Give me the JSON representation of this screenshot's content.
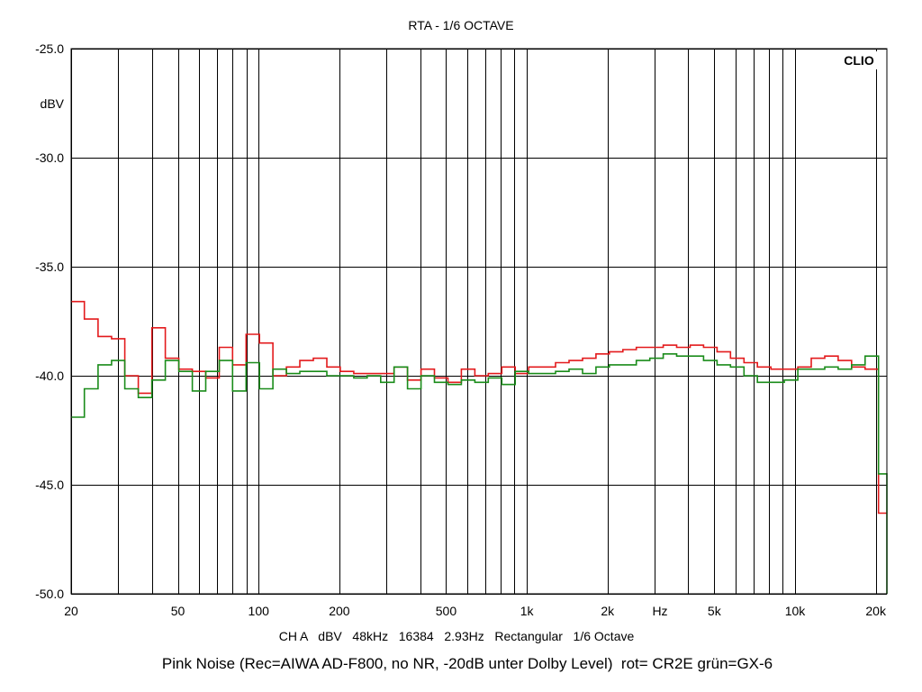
{
  "title": "RTA - 1/6 OCTAVE",
  "brand": "CLIO",
  "ylabel": "dBV",
  "xunit_label": "Hz",
  "settings_line": "CH A   dBV   48kHz   16384   2.93Hz   Rectangular   1/6 Octave",
  "caption": "Pink Noise (Rec=AIWA AD-F800, no NR, -20dB unter Dolby Level)  rot= CR2E grün=GX-6",
  "chart_data": {
    "type": "line",
    "step": true,
    "xscale": "log",
    "xlim": [
      20,
      22000
    ],
    "ylim": [
      -50,
      -25
    ],
    "grid": true,
    "y_ticks": [
      -25,
      -30,
      -35,
      -40,
      -45,
      -50
    ],
    "y_tick_labels": [
      "-25.0",
      "-30.0",
      "-35.0",
      "-40.0",
      "-45.0",
      "-50.0"
    ],
    "x_ticks": [
      20,
      50,
      100,
      200,
      500,
      1000,
      2000,
      5000,
      10000,
      20000
    ],
    "x_tick_labels": [
      "20",
      "50",
      "100",
      "200",
      "500",
      "1k",
      "2k",
      "5k",
      "10k",
      "20k"
    ],
    "x_grid": [
      20,
      30,
      40,
      50,
      60,
      70,
      80,
      90,
      100,
      200,
      300,
      400,
      500,
      600,
      700,
      800,
      900,
      1000,
      2000,
      3000,
      4000,
      5000,
      6000,
      7000,
      8000,
      9000,
      10000,
      20000
    ],
    "series": [
      {
        "color": "#e31a1c",
        "x": [
          20,
          22.4,
          25.2,
          28.3,
          31.7,
          35.6,
          40,
          44.9,
          50.4,
          56.6,
          63.5,
          71.3,
          80,
          89.8,
          100.8,
          113.1,
          127,
          142.5,
          160,
          179.6,
          201.6,
          226.3,
          254,
          285.1,
          320,
          359.2,
          403.2,
          452.5,
          508,
          570.2,
          640,
          718.4,
          806.3,
          905.1,
          1016,
          1140,
          1280,
          1437,
          1613,
          1810,
          2032,
          2281,
          2560,
          2874,
          3225,
          3620,
          4064,
          4561,
          5120,
          5747,
          6451,
          7241,
          8127,
          9123,
          10240,
          11494,
          12902,
          14482,
          16255,
          18246,
          20480,
          22000
        ],
        "y": [
          -36.6,
          -37.4,
          -38.2,
          -38.3,
          -40.0,
          -40.8,
          -37.8,
          -39.2,
          -39.7,
          -39.8,
          -40.1,
          -38.7,
          -39.5,
          -38.1,
          -38.5,
          -40.0,
          -39.6,
          -39.3,
          -39.2,
          -39.6,
          -39.8,
          -39.9,
          -39.9,
          -39.9,
          -39.6,
          -40.2,
          -39.7,
          -40.1,
          -40.3,
          -39.7,
          -40.0,
          -39.9,
          -39.6,
          -39.9,
          -39.6,
          -39.6,
          -39.4,
          -39.3,
          -39.2,
          -39.0,
          -38.9,
          -38.8,
          -38.7,
          -38.7,
          -38.6,
          -38.7,
          -38.6,
          -38.7,
          -38.9,
          -39.2,
          -39.4,
          -39.6,
          -39.7,
          -39.7,
          -39.6,
          -39.2,
          -39.1,
          -39.3,
          -39.6,
          -39.7,
          -46.3,
          -46.3
        ]
      },
      {
        "color": "#1a8c1a",
        "x": [
          20,
          22.4,
          25.2,
          28.3,
          31.7,
          35.6,
          40,
          44.9,
          50.4,
          56.6,
          63.5,
          71.3,
          80,
          89.8,
          100.8,
          113.1,
          127,
          142.5,
          160,
          179.6,
          201.6,
          226.3,
          254,
          285.1,
          320,
          359.2,
          403.2,
          452.5,
          508,
          570.2,
          640,
          718.4,
          806.3,
          905.1,
          1016,
          1140,
          1280,
          1437,
          1613,
          1810,
          2032,
          2281,
          2560,
          2874,
          3225,
          3620,
          4064,
          4561,
          5120,
          5747,
          6451,
          7241,
          8127,
          9123,
          10240,
          11494,
          12902,
          14482,
          16255,
          18246,
          20480,
          22000
        ],
        "y": [
          -41.9,
          -40.6,
          -39.5,
          -39.3,
          -40.6,
          -41.0,
          -40.2,
          -39.3,
          -39.8,
          -40.7,
          -39.8,
          -39.3,
          -40.7,
          -39.4,
          -40.6,
          -39.7,
          -39.9,
          -39.8,
          -39.8,
          -40.0,
          -40.0,
          -40.1,
          -40.0,
          -40.3,
          -39.6,
          -40.6,
          -40.0,
          -40.3,
          -40.4,
          -40.2,
          -40.3,
          -40.1,
          -40.4,
          -39.8,
          -39.9,
          -39.9,
          -39.8,
          -39.7,
          -39.9,
          -39.6,
          -39.5,
          -39.5,
          -39.3,
          -39.2,
          -39.0,
          -39.1,
          -39.1,
          -39.3,
          -39.5,
          -39.6,
          -40.0,
          -40.3,
          -40.3,
          -40.2,
          -39.7,
          -39.7,
          -39.6,
          -39.7,
          -39.5,
          -39.1,
          -44.5,
          -50
        ]
      }
    ]
  }
}
